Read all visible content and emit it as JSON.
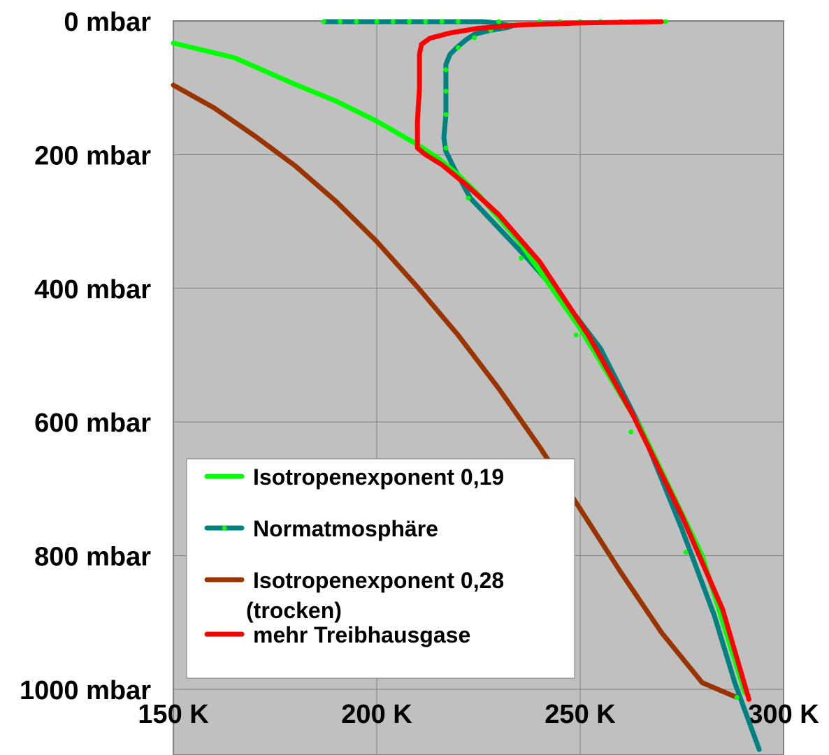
{
  "chart_data": {
    "type": "line",
    "title": "",
    "xlabel": "",
    "ylabel": "",
    "x_unit": "K",
    "y_unit": "mbar",
    "xlim": [
      150,
      300
    ],
    "ylim": [
      0,
      1000
    ],
    "y_inverted": true,
    "grid": true,
    "plot_background": "#c0c0c0",
    "x_ticks": [
      {
        "value": 150,
        "label": "150 K"
      },
      {
        "value": 200,
        "label": "200 K"
      },
      {
        "value": 250,
        "label": "250 K"
      },
      {
        "value": 300,
        "label": "300 K"
      }
    ],
    "y_ticks": [
      {
        "value": 0,
        "label": "0 mbar"
      },
      {
        "value": 200,
        "label": "200 mbar"
      },
      {
        "value": 400,
        "label": "400 mbar"
      },
      {
        "value": 600,
        "label": "600 mbar"
      },
      {
        "value": 800,
        "label": "800 mbar"
      },
      {
        "value": 1000,
        "label": "1000 mbar"
      }
    ],
    "legend_placement": "bottom-left",
    "series": [
      {
        "name": "Isotropenexponent 0,19",
        "color": "#00ff00",
        "marker": false,
        "x": [
          150,
          165,
          180,
          190,
          200,
          210,
          215,
          220,
          225,
          235,
          250,
          265,
          280,
          290.5
        ],
        "y": [
          33,
          55,
          95,
          120,
          150,
          185,
          205,
          230,
          260,
          330,
          460,
          610,
          800,
          1005
        ]
      },
      {
        "name": "Normatmosphäre",
        "color": "#008080",
        "marker": true,
        "marker_color": "#00ff00",
        "x": [
          187,
          200,
          215,
          226,
          228,
          230,
          232,
          233,
          232,
          228,
          224,
          222,
          220,
          218,
          217,
          217,
          217,
          217,
          216.5,
          217,
          219,
          223,
          230,
          237,
          245,
          255,
          265,
          275,
          283,
          288,
          291,
          294
        ],
        "y": [
          1,
          1,
          1,
          1,
          2,
          4,
          6,
          8,
          10,
          14,
          20,
          28,
          38,
          50,
          65,
          80,
          110,
          140,
          175,
          195,
          220,
          265,
          310,
          355,
          410,
          490,
          610,
          760,
          890,
          990,
          1040,
          1090
        ],
        "marker_x": [
          187,
          191,
          195,
          200,
          204,
          208,
          212,
          216,
          220,
          230,
          240,
          245,
          250,
          255,
          260,
          265,
          268,
          271,
          222.5,
          235.5,
          249,
          262.5,
          276,
          288.5,
          217,
          217,
          217,
          217,
          220,
          224,
          228,
          231,
          233
        ],
        "marker_y": [
          1,
          1,
          1,
          1,
          1,
          1,
          1,
          1,
          1,
          1,
          1,
          1,
          1,
          1,
          1,
          1,
          1,
          1,
          265,
          355,
          470,
          615,
          795,
          1012,
          73,
          105,
          140,
          190,
          40,
          25,
          14,
          9,
          6
        ]
      },
      {
        "name": "Isotropenexponent 0,28 (trocken)",
        "color": "#993300",
        "marker": false,
        "x": [
          150,
          160,
          170,
          180,
          190,
          200,
          210,
          220,
          230,
          240,
          250,
          260,
          270,
          280,
          288.5
        ],
        "y": [
          96,
          130,
          172,
          217,
          270,
          330,
          398,
          470,
          550,
          637,
          730,
          825,
          915,
          990,
          1012
        ]
      },
      {
        "name": "mehr Treibhausgase",
        "color": "#ff0000",
        "marker": false,
        "x": [
          270,
          250,
          235,
          225,
          218,
          213,
          211,
          210.5,
          210.5,
          210,
          210,
          212,
          216,
          222,
          230,
          240,
          252,
          263,
          275,
          285,
          291.5
        ],
        "y": [
          1,
          3,
          6,
          11,
          18,
          26,
          35,
          50,
          100,
          150,
          190,
          200,
          215,
          245,
          290,
          360,
          470,
          590,
          740,
          880,
          1015
        ]
      }
    ]
  }
}
